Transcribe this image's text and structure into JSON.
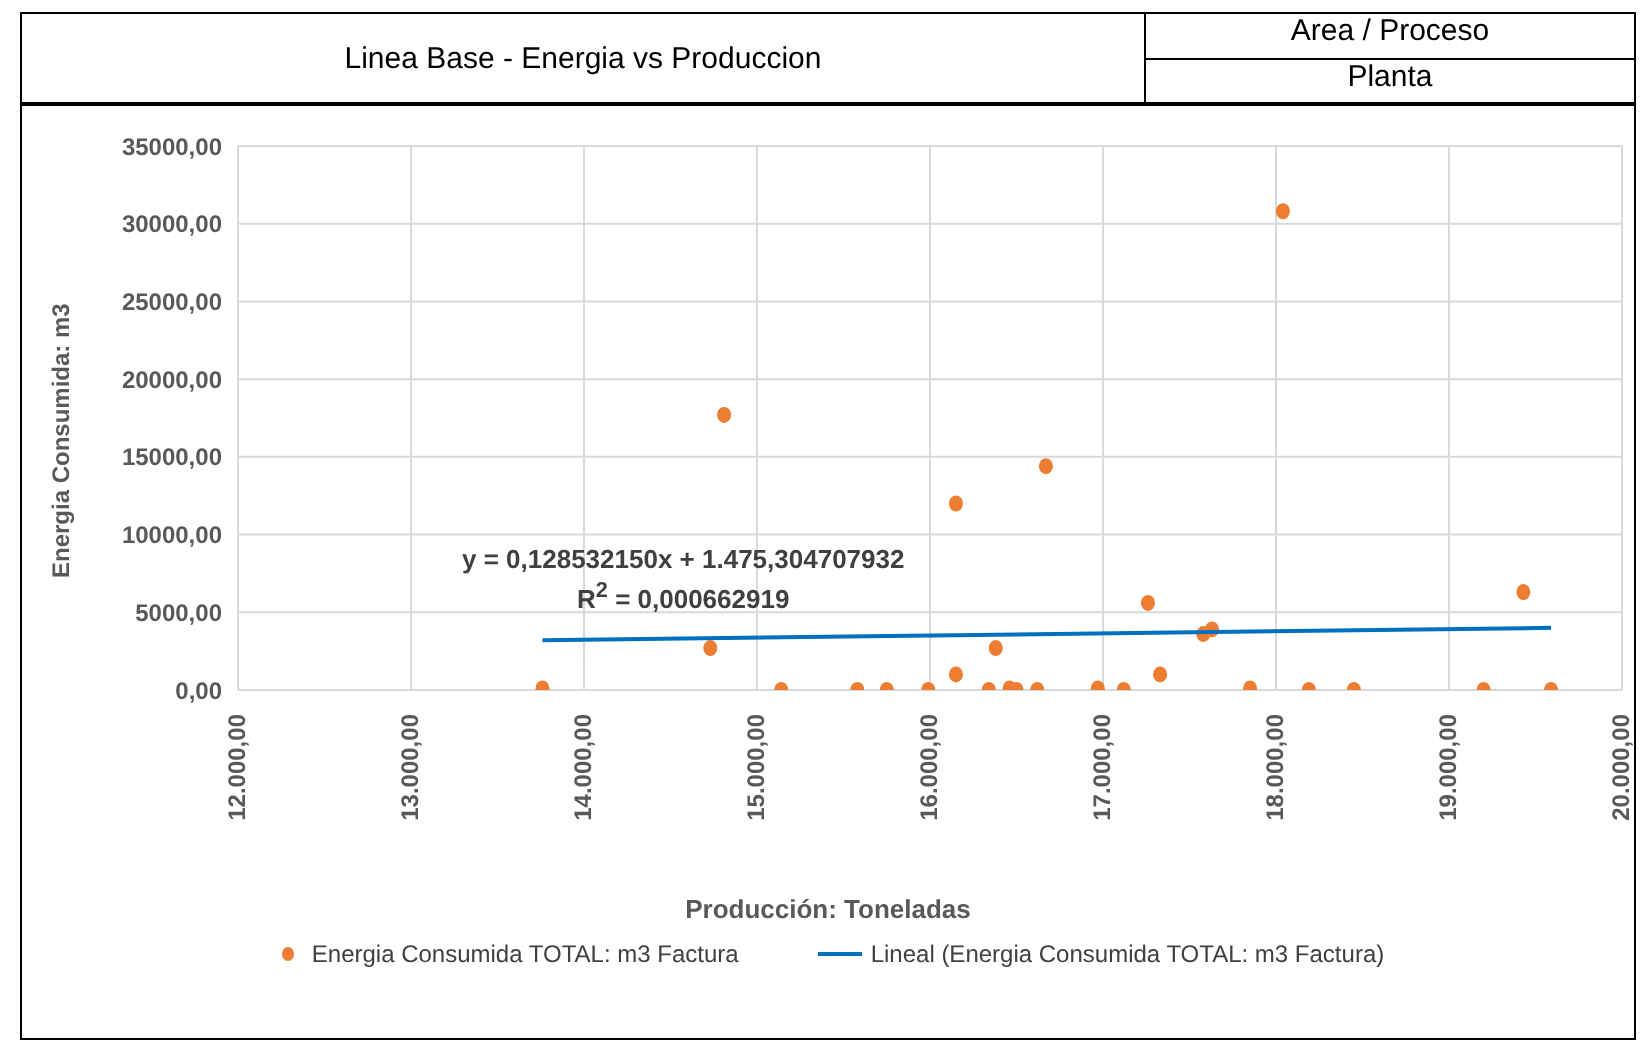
{
  "chart_data": {
    "type": "scatter",
    "title": "Linea Base - Energia vs Produccion",
    "xlabel": "Producción: Toneladas",
    "ylabel": "Energia Consumida: m3",
    "annotations": [
      "Area / Proceso",
      "Planta",
      "y = 0,128532150x + 1.475,304707932",
      "R$^{2}$ = 0,000662919"
    ],
    "series": [
      {
        "name": "Energia Consumida TOTAL: m3 Factura",
        "color": "#ed7d31",
        "marker": "circle",
        "x": [
          13760,
          14730,
          14810,
          15140,
          15580,
          15750,
          15990,
          16150,
          16150,
          16340,
          16380,
          16460,
          16500,
          16620,
          16670,
          16970,
          17120,
          17260,
          17330,
          17580,
          17630,
          17850,
          18040,
          18190,
          18450,
          19200,
          19430,
          19590
        ],
        "values": [
          100,
          2700,
          17700,
          0,
          0,
          0,
          0,
          1000,
          12000,
          0,
          2700,
          100,
          0,
          0,
          14400,
          100,
          0,
          5600,
          1000,
          3600,
          3900,
          100,
          30800,
          0,
          0,
          0,
          6300,
          0
        ]
      },
      {
        "name": "Lineal (Energia Consumida TOTAL: m3 Factura)",
        "type": "line",
        "color": "#0070c0",
        "marker": "none",
        "x": [
          13760,
          19590
        ],
        "values": [
          3200,
          4000
        ]
      }
    ],
    "xlim": [
      12000,
      20000
    ],
    "xticks": [
      {
        "value": 12000,
        "label": "12.000,00"
      },
      {
        "value": 13000,
        "label": "13.000,00"
      },
      {
        "value": 14000,
        "label": "14.000,00"
      },
      {
        "value": 15000,
        "label": "15.000,00"
      },
      {
        "value": 16000,
        "label": "16.000,00"
      },
      {
        "value": 17000,
        "label": "17.000,00"
      },
      {
        "value": 18000,
        "label": "18.000,00"
      },
      {
        "value": 19000,
        "label": "19.000,00"
      },
      {
        "value": 20000,
        "label": "20.000,00"
      }
    ],
    "ylim": [
      0,
      35000
    ],
    "yticks": [
      {
        "value": 0,
        "label": "0,00"
      },
      {
        "value": 5000,
        "label": "5000,00"
      },
      {
        "value": 10000,
        "label": "10000,00"
      },
      {
        "value": 15000,
        "label": "15000,00"
      },
      {
        "value": 20000,
        "label": "20000,00"
      },
      {
        "value": 25000,
        "label": "25000,00"
      },
      {
        "value": 30000,
        "label": "30000,00"
      },
      {
        "value": 35000,
        "label": "35000,00"
      }
    ],
    "grid": true,
    "legend": "bottom"
  }
}
